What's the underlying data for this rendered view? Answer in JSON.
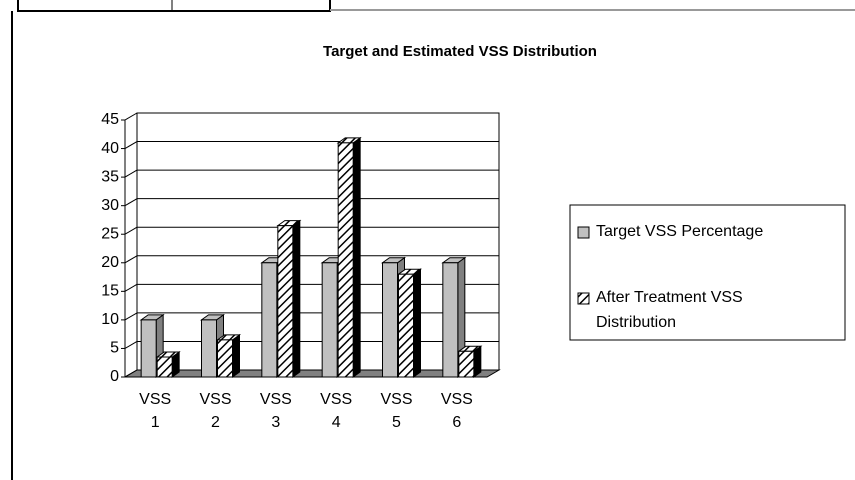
{
  "chart_data": {
    "type": "bar3d",
    "title": "Target and Estimated VSS Distribution",
    "categories": [
      "VSS 1",
      "VSS 2",
      "VSS 3",
      "VSS 4",
      "VSS 5",
      "VSS 6"
    ],
    "series": [
      {
        "name": "Target VSS Percentage",
        "color": "#c0c0c0",
        "values": [
          10,
          10,
          20,
          20,
          20,
          20
        ]
      },
      {
        "name": "After Treatment VSS Distribution",
        "color": "#000000",
        "hatch": true,
        "values": [
          3.5,
          6.5,
          26.5,
          41,
          18,
          4.5
        ]
      }
    ],
    "ylim": [
      0,
      45
    ],
    "yticks": [
      0,
      5,
      10,
      15,
      20,
      25,
      30,
      35,
      40,
      45
    ],
    "grid": true,
    "legend": "right"
  }
}
